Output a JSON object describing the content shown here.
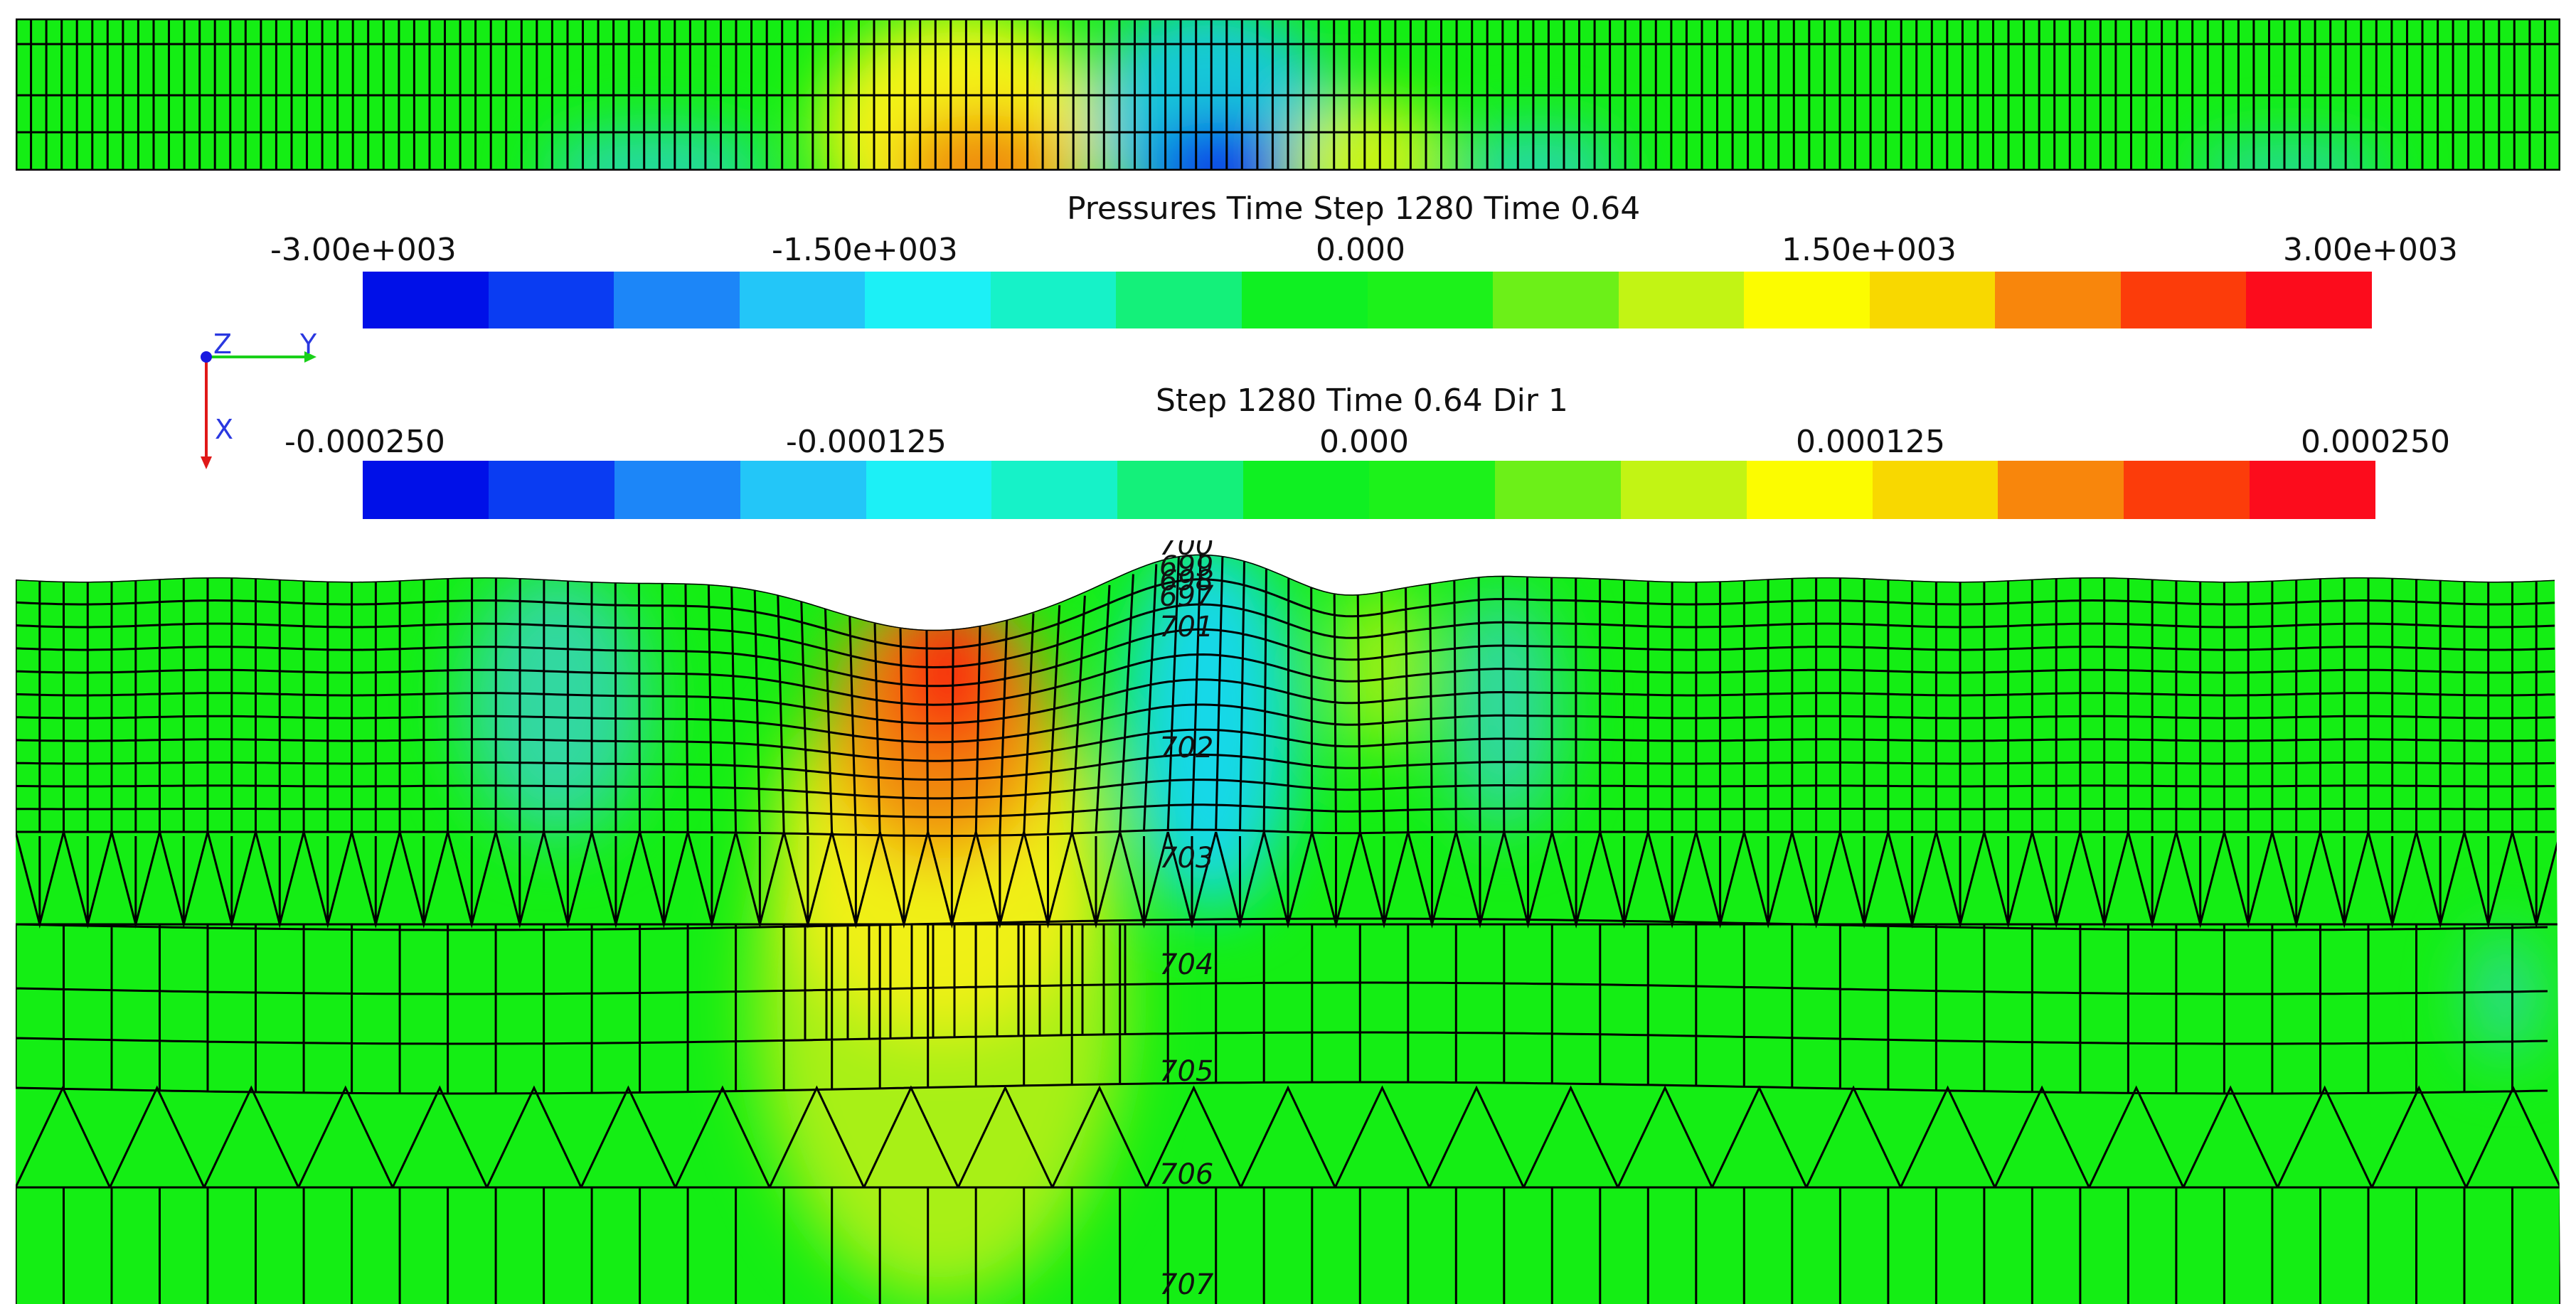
{
  "pressure_colorbar": {
    "title": "Pressures Time Step  1280 Time 0.64",
    "ticks": [
      "-3.00e+003",
      "-1.50e+003",
      "0.000",
      "1.50e+003",
      "3.00e+003"
    ],
    "range": [
      -3000,
      3000
    ],
    "colors": [
      "#0010e8",
      "#0a3cf2",
      "#1c86f8",
      "#23c6f8",
      "#1cf0f6",
      "#16f2c8",
      "#14f07a",
      "#0ff022",
      "#1cf21a",
      "#6cf018",
      "#c2f414",
      "#fcfc00",
      "#f8d800",
      "#f8860c",
      "#fc3c0a",
      "#fc0c1c"
    ]
  },
  "displacement_colorbar": {
    "title": "Step  1280 Time 0.64 Dir  1",
    "ticks": [
      "-0.000250",
      "-0.000125",
      "0.000",
      "0.000125",
      "0.000250"
    ],
    "range": [
      -0.00025,
      0.00025
    ],
    "colors": [
      "#0010e8",
      "#0a3cf2",
      "#1c86f8",
      "#23c6f8",
      "#1cf0f6",
      "#16f2c8",
      "#14f07a",
      "#0ff022",
      "#1cf21a",
      "#6cf018",
      "#c2f414",
      "#fcfc00",
      "#f8d800",
      "#f8860c",
      "#fc3c0a",
      "#fc0c1c"
    ]
  },
  "axes_triad": {
    "z": "Z",
    "y": "Y",
    "x": "X"
  },
  "contour_labels": [
    "700",
    "699",
    "698",
    "697",
    "701",
    "702",
    "703",
    "704",
    "705",
    "706",
    "707"
  ],
  "background_color": "#14ee14"
}
